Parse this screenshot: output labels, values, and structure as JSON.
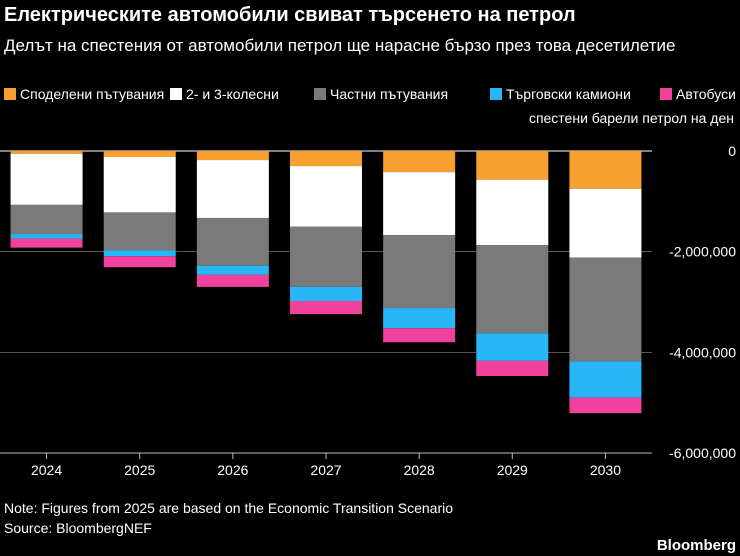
{
  "header": {
    "title": "Електрическите автомобили свиват търсенето на петрол",
    "subtitle": "Делът на спестения от автомобили петрол ще нарасне бързо през това десетилетие"
  },
  "legend": [
    {
      "label": "Споделени пътувания",
      "color": "#f7a030"
    },
    {
      "label": "2- и 3-колесни",
      "color": "#ffffff"
    },
    {
      "label": "Частни пътувания",
      "color": "#7a7a7a"
    },
    {
      "label": "Търговски камиони",
      "color": "#29b6f6"
    },
    {
      "label": "Автобуси",
      "color": "#f0429c"
    }
  ],
  "footer": {
    "note": "Note: Figures from 2025 are based on the Economic Transition Scenario",
    "source": "Source: BloombergNEF",
    "brand": "Bloomberg"
  },
  "chart_data": {
    "type": "bar",
    "stacked": true,
    "ylabel": "спестени барели петрол на ден",
    "ylim": [
      -6000000,
      0
    ],
    "yticks": [
      0,
      -2000000,
      -4000000,
      -6000000
    ],
    "ytick_labels": [
      "0",
      "-2,000,000",
      "-4,000,000",
      "-6,000,000"
    ],
    "categories": [
      "2024",
      "2025",
      "2026",
      "2027",
      "2028",
      "2029",
      "2030"
    ],
    "series": [
      {
        "name": "Споделени пътувания",
        "color": "#f7a030",
        "values": [
          -60000,
          -120000,
          -180000,
          -300000,
          -420000,
          -570000,
          -750000
        ]
      },
      {
        "name": "2- и 3-колесни",
        "color": "#ffffff",
        "values": [
          -1010000,
          -1100000,
          -1150000,
          -1200000,
          -1250000,
          -1300000,
          -1370000
        ]
      },
      {
        "name": "Частни пътувания",
        "color": "#7a7a7a",
        "values": [
          -580000,
          -750000,
          -950000,
          -1200000,
          -1450000,
          -1750000,
          -2060000
        ]
      },
      {
        "name": "Търговски камиони",
        "color": "#29b6f6",
        "values": [
          -90000,
          -120000,
          -180000,
          -280000,
          -400000,
          -550000,
          -720000
        ]
      },
      {
        "name": "Автобуси",
        "color": "#f0429c",
        "values": [
          -180000,
          -220000,
          -240000,
          -260000,
          -280000,
          -300000,
          -310000
        ]
      }
    ],
    "grid": true
  }
}
